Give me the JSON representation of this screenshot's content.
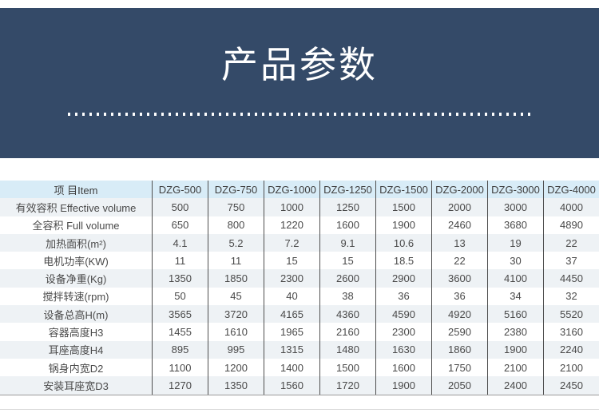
{
  "banner": {
    "title": "产品参数",
    "bg_color": "#344a68",
    "title_color": "#ffffff"
  },
  "table": {
    "item_header": "项 目Item",
    "columns": [
      "DZG-500",
      "DZG-750",
      "DZG-1000",
      "DZG-1250",
      "DZG-1500",
      "DZG-2000",
      "DZG-3000",
      "DZG-4000"
    ],
    "rows": [
      {
        "label": "有效容积 Effective volume",
        "values": [
          "500",
          "750",
          "1000",
          "1250",
          "1500",
          "2000",
          "3000",
          "4000"
        ]
      },
      {
        "label": "全容积 Full volume",
        "values": [
          "650",
          "800",
          "1220",
          "1600",
          "1900",
          "2460",
          "3680",
          "4890"
        ]
      },
      {
        "label": "加热面积(m²)",
        "values": [
          "4.1",
          "5.2",
          "7.2",
          "9.1",
          "10.6",
          "13",
          "19",
          "22"
        ]
      },
      {
        "label": "电机功率(KW)",
        "values": [
          "11",
          "11",
          "15",
          "15",
          "18.5",
          "22",
          "30",
          "37"
        ]
      },
      {
        "label": "设备净重(Kg)",
        "values": [
          "1350",
          "1850",
          "2300",
          "2600",
          "2900",
          "3600",
          "4100",
          "4450"
        ]
      },
      {
        "label": "搅拌转速(rpm)",
        "values": [
          "50",
          "45",
          "40",
          "38",
          "36",
          "36",
          "34",
          "32"
        ]
      },
      {
        "label": "设备总高H(m)",
        "values": [
          "3565",
          "3720",
          "4165",
          "4360",
          "4590",
          "4920",
          "5160",
          "5520"
        ]
      },
      {
        "label": "容器高度H3",
        "values": [
          "1455",
          "1610",
          "1965",
          "2160",
          "2300",
          "2590",
          "2380",
          "3160"
        ]
      },
      {
        "label": "耳座高度H4",
        "values": [
          "895",
          "995",
          "1315",
          "1480",
          "1630",
          "1860",
          "1900",
          "2240"
        ]
      },
      {
        "label": "锅身内宽D2",
        "values": [
          "1100",
          "1200",
          "1400",
          "1500",
          "1600",
          "1750",
          "2100",
          "2100"
        ]
      },
      {
        "label": "安装耳座宽D3",
        "values": [
          "1270",
          "1350",
          "1560",
          "1720",
          "1900",
          "2050",
          "2400",
          "2450"
        ]
      }
    ],
    "colors": {
      "header_bg": "#d8ecf7",
      "stripe_bg": "#eef2f5",
      "row_bg": "#ffffff",
      "divider": "#4f4f4f",
      "text": "#4a4a4a"
    }
  }
}
